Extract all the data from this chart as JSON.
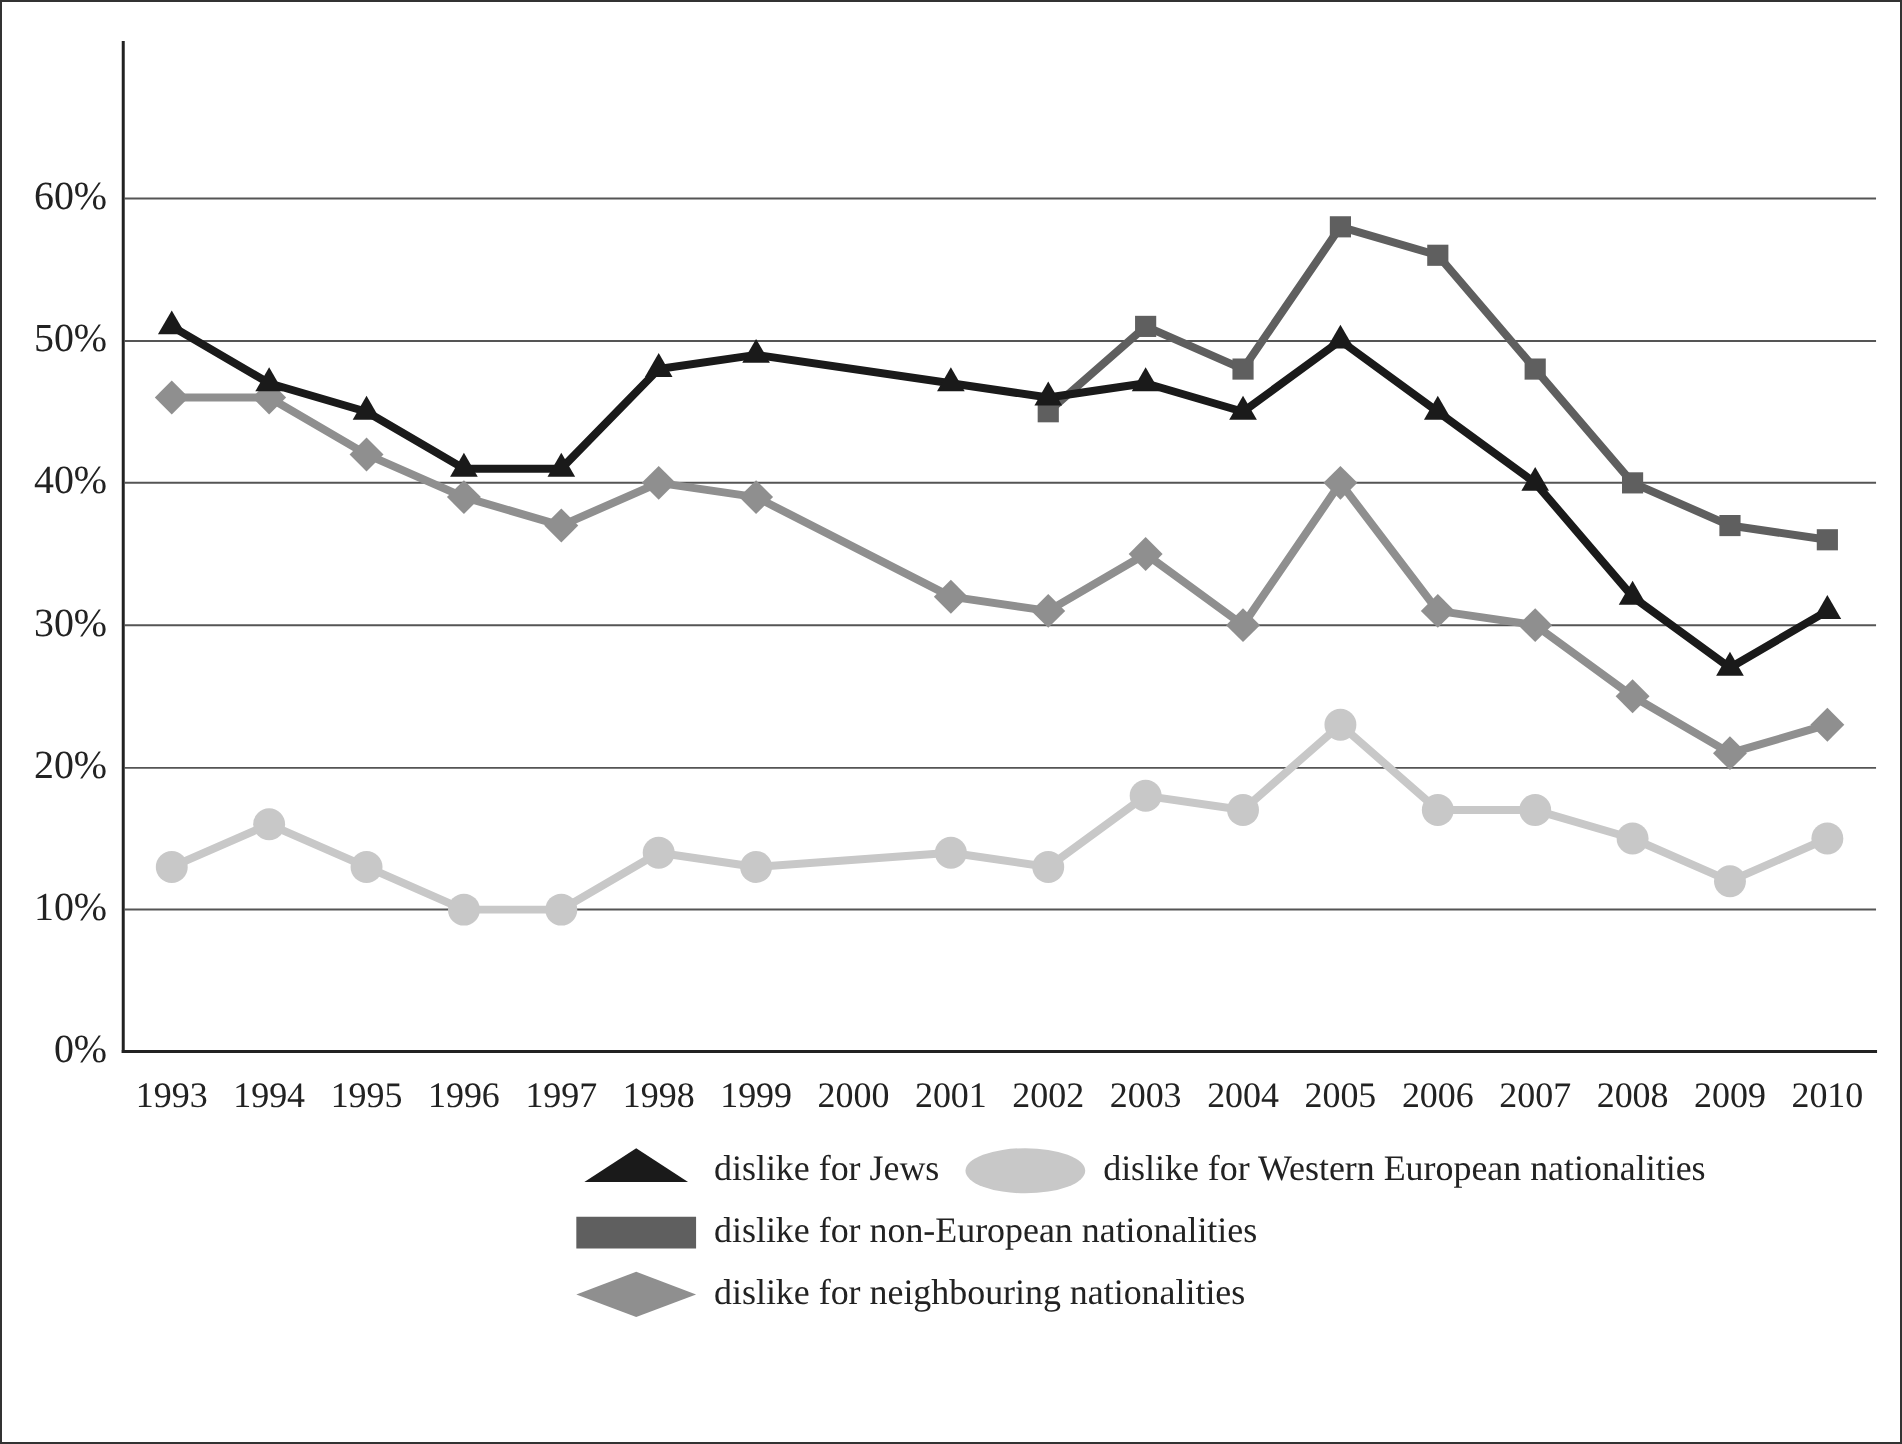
{
  "chart_data": {
    "type": "line",
    "categories": [
      "1993",
      "1994",
      "1995",
      "1996",
      "1997",
      "1998",
      "1999",
      "2000",
      "2001",
      "2002",
      "2003",
      "2004",
      "2005",
      "2006",
      "2007",
      "2008",
      "2009",
      "2010"
    ],
    "series": [
      {
        "name": "dislike for Jews",
        "color": "#1a1a1a",
        "marker": "triangle",
        "values": [
          51,
          47,
          45,
          41,
          41,
          48,
          49,
          null,
          47,
          46,
          47,
          45,
          50,
          45,
          40,
          32,
          27,
          31
        ]
      },
      {
        "name": "dislike for Western European nationalities",
        "color": "#c8c8c8",
        "marker": "circle",
        "values": [
          13,
          16,
          13,
          10,
          10,
          14,
          13,
          null,
          14,
          13,
          18,
          17,
          23,
          17,
          17,
          15,
          12,
          15
        ]
      },
      {
        "name": "dislike for non-European nationalities",
        "color": "#5f5f5f",
        "marker": "square",
        "values": [
          null,
          null,
          null,
          null,
          null,
          null,
          null,
          null,
          null,
          45,
          51,
          48,
          58,
          56,
          48,
          40,
          37,
          36
        ]
      },
      {
        "name": "dislike for neighbouring nationalities",
        "color": "#8f8f8f",
        "marker": "diamond",
        "values": [
          46,
          46,
          42,
          39,
          37,
          40,
          39,
          null,
          32,
          31,
          35,
          30,
          40,
          31,
          30,
          25,
          21,
          23
        ]
      }
    ],
    "ylim": [
      0,
      71
    ],
    "yticks": [
      {
        "value": 0,
        "label": "0%"
      },
      {
        "value": 10,
        "label": "10%"
      },
      {
        "value": 20,
        "label": "20%"
      },
      {
        "value": 30,
        "label": "30%"
      },
      {
        "value": 40,
        "label": "40%"
      },
      {
        "value": 50,
        "label": "50%"
      },
      {
        "value": 60,
        "label": "60%"
      }
    ],
    "grid": "y",
    "legend": "bottom",
    "line_style": "solid"
  }
}
